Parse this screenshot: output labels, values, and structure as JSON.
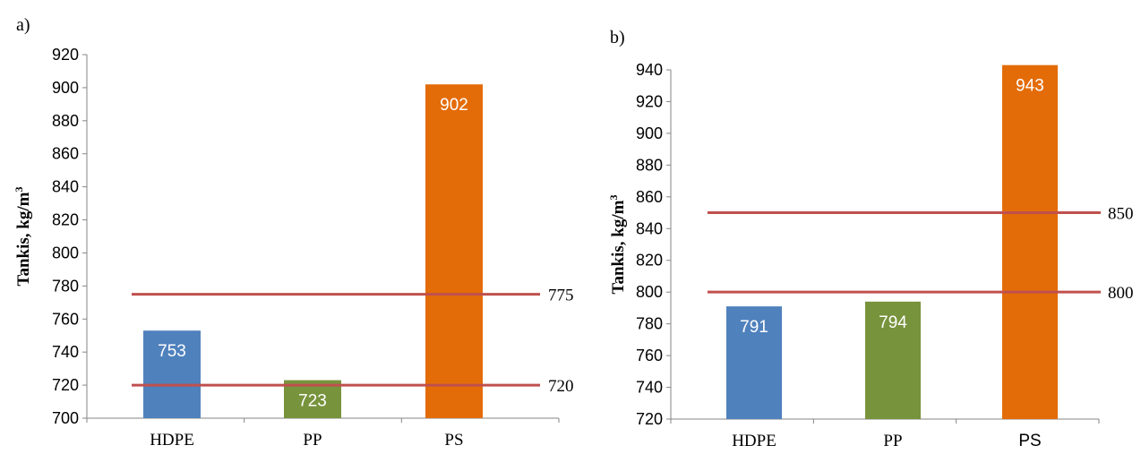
{
  "chart_data": [
    {
      "panel": "a)",
      "type": "bar",
      "categories": [
        "HDPE",
        "PP",
        "PS"
      ],
      "values": [
        753,
        723,
        902
      ],
      "colors": [
        "#4f81bd",
        "#77933c",
        "#e36c09"
      ],
      "ylabel": "Tankis, kg/m",
      "ylabel_sup": "3",
      "ylim": [
        700,
        920
      ],
      "yticks": [
        "700",
        "720",
        "740",
        "760",
        "780",
        "800",
        "820",
        "840",
        "860",
        "880",
        "900",
        "920"
      ],
      "reference_lines": [
        {
          "value": 775,
          "label": "775",
          "color": "#c0504d"
        },
        {
          "value": 720,
          "label": "720",
          "color": "#c0504d"
        }
      ],
      "grid": false,
      "legend": "none"
    },
    {
      "panel": "b)",
      "type": "bar",
      "categories": [
        "HDPE",
        "PP",
        "PS"
      ],
      "values": [
        791,
        794,
        943
      ],
      "colors": [
        "#4f81bd",
        "#77933c",
        "#e36c09"
      ],
      "ylabel": "Tankis, kg/m",
      "ylabel_sup": "3",
      "ylim": [
        720,
        940
      ],
      "yticks": [
        "720",
        "740",
        "760",
        "780",
        "800",
        "820",
        "840",
        "860",
        "880",
        "900",
        "920",
        "940"
      ],
      "reference_lines": [
        {
          "value": 850,
          "label": "850",
          "color": "#c0504d"
        },
        {
          "value": 800,
          "label": "800",
          "color": "#c0504d"
        }
      ],
      "grid": false,
      "legend": "none"
    }
  ]
}
